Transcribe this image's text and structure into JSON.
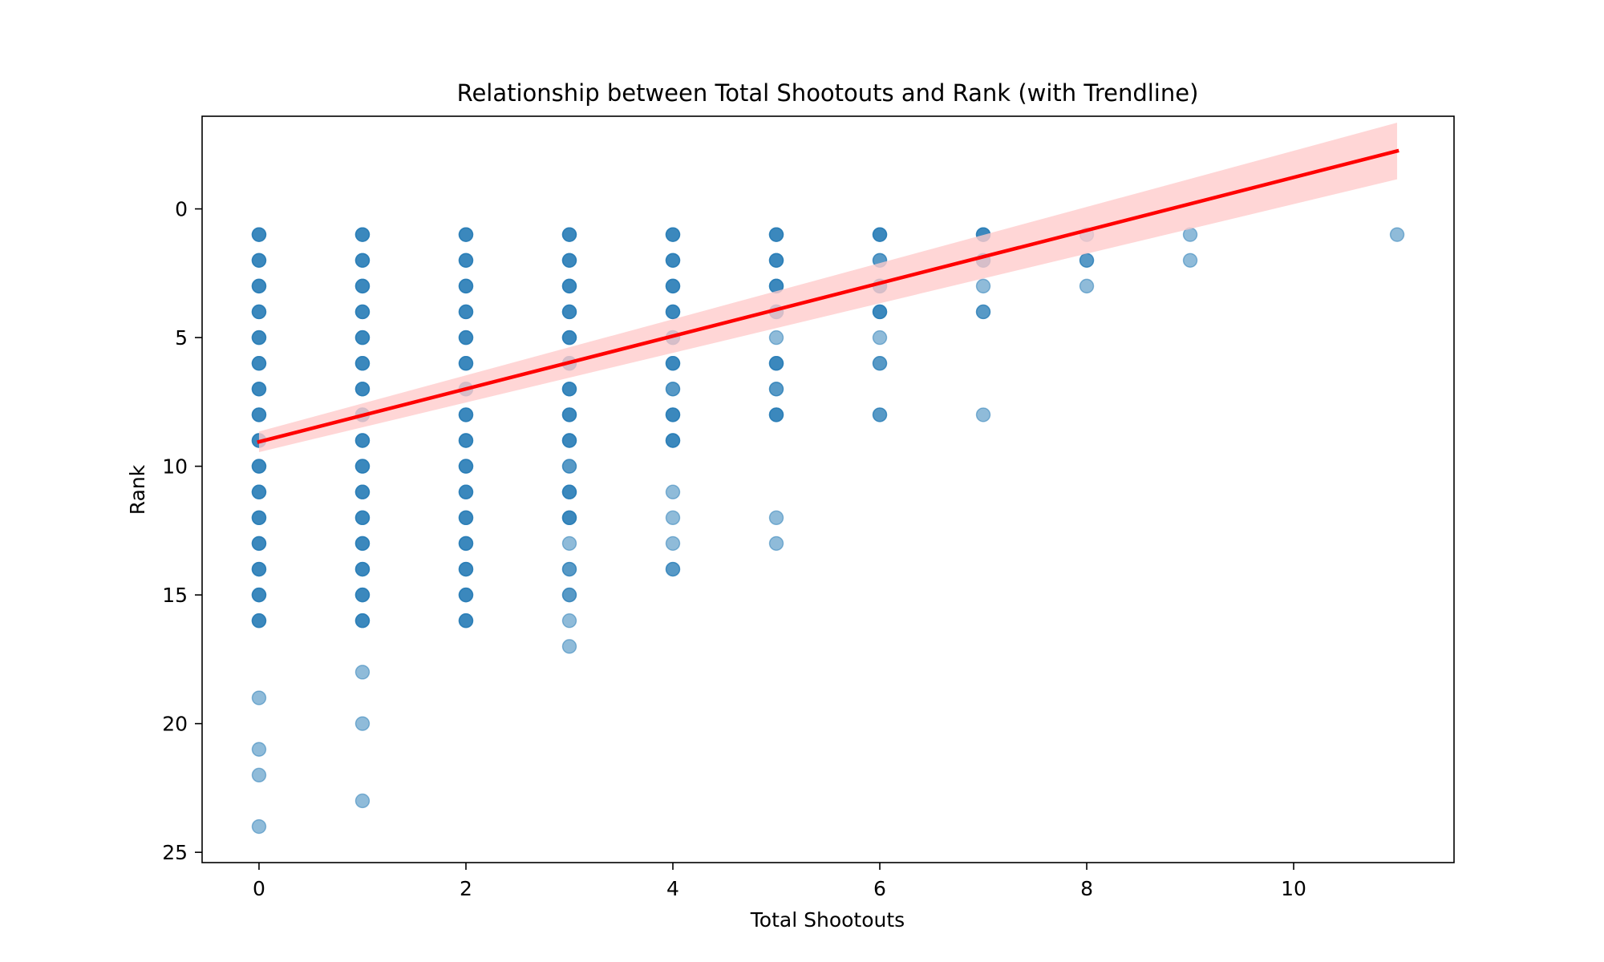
{
  "chart_data": {
    "type": "scatter",
    "title": "Relationship between Total Shootouts and Rank (with Trendline)",
    "xlabel": "Total Shootouts",
    "ylabel": "Rank",
    "xlim": [
      -0.55,
      11.55
    ],
    "ylim": [
      25.4,
      -3.6
    ],
    "y_inverted": true,
    "xticks": [
      0,
      2,
      4,
      6,
      8,
      10
    ],
    "yticks": [
      0,
      5,
      10,
      15,
      20,
      25
    ],
    "grid": false,
    "legend": "none",
    "colors": {
      "points": "#1f77b4",
      "trendline": "#ff0000",
      "confidence_band": "#ffcccc"
    },
    "series": [
      {
        "points": [
          {
            "x": 0,
            "y": 1,
            "count": 3
          },
          {
            "x": 0,
            "y": 2,
            "count": 3
          },
          {
            "x": 0,
            "y": 3,
            "count": 3
          },
          {
            "x": 0,
            "y": 4,
            "count": 3
          },
          {
            "x": 0,
            "y": 5,
            "count": 3
          },
          {
            "x": 0,
            "y": 6,
            "count": 3
          },
          {
            "x": 0,
            "y": 7,
            "count": 3
          },
          {
            "x": 0,
            "y": 8,
            "count": 3
          },
          {
            "x": 0,
            "y": 9,
            "count": 3
          },
          {
            "x": 0,
            "y": 10,
            "count": 3
          },
          {
            "x": 0,
            "y": 11,
            "count": 3
          },
          {
            "x": 0,
            "y": 12,
            "count": 3
          },
          {
            "x": 0,
            "y": 13,
            "count": 3
          },
          {
            "x": 0,
            "y": 14,
            "count": 3
          },
          {
            "x": 0,
            "y": 15,
            "count": 3
          },
          {
            "x": 0,
            "y": 16,
            "count": 3
          },
          {
            "x": 0,
            "y": 19,
            "count": 1
          },
          {
            "x": 0,
            "y": 21,
            "count": 1
          },
          {
            "x": 0,
            "y": 22,
            "count": 1
          },
          {
            "x": 0,
            "y": 24,
            "count": 1
          },
          {
            "x": 1,
            "y": 1,
            "count": 3
          },
          {
            "x": 1,
            "y": 2,
            "count": 3
          },
          {
            "x": 1,
            "y": 3,
            "count": 3
          },
          {
            "x": 1,
            "y": 4,
            "count": 3
          },
          {
            "x": 1,
            "y": 5,
            "count": 3
          },
          {
            "x": 1,
            "y": 6,
            "count": 3
          },
          {
            "x": 1,
            "y": 7,
            "count": 3
          },
          {
            "x": 1,
            "y": 8,
            "count": 3
          },
          {
            "x": 1,
            "y": 9,
            "count": 3
          },
          {
            "x": 1,
            "y": 10,
            "count": 3
          },
          {
            "x": 1,
            "y": 11,
            "count": 3
          },
          {
            "x": 1,
            "y": 12,
            "count": 3
          },
          {
            "x": 1,
            "y": 13,
            "count": 3
          },
          {
            "x": 1,
            "y": 14,
            "count": 3
          },
          {
            "x": 1,
            "y": 15,
            "count": 3
          },
          {
            "x": 1,
            "y": 16,
            "count": 3
          },
          {
            "x": 1,
            "y": 18,
            "count": 1
          },
          {
            "x": 1,
            "y": 20,
            "count": 1
          },
          {
            "x": 1,
            "y": 23,
            "count": 1
          },
          {
            "x": 2,
            "y": 1,
            "count": 3
          },
          {
            "x": 2,
            "y": 2,
            "count": 3
          },
          {
            "x": 2,
            "y": 3,
            "count": 3
          },
          {
            "x": 2,
            "y": 4,
            "count": 3
          },
          {
            "x": 2,
            "y": 5,
            "count": 3
          },
          {
            "x": 2,
            "y": 6,
            "count": 3
          },
          {
            "x": 2,
            "y": 7,
            "count": 3
          },
          {
            "x": 2,
            "y": 8,
            "count": 3
          },
          {
            "x": 2,
            "y": 9,
            "count": 3
          },
          {
            "x": 2,
            "y": 10,
            "count": 3
          },
          {
            "x": 2,
            "y": 11,
            "count": 3
          },
          {
            "x": 2,
            "y": 12,
            "count": 3
          },
          {
            "x": 2,
            "y": 13,
            "count": 3
          },
          {
            "x": 2,
            "y": 14,
            "count": 3
          },
          {
            "x": 2,
            "y": 15,
            "count": 3
          },
          {
            "x": 2,
            "y": 16,
            "count": 3
          },
          {
            "x": 3,
            "y": 1,
            "count": 3
          },
          {
            "x": 3,
            "y": 2,
            "count": 3
          },
          {
            "x": 3,
            "y": 3,
            "count": 3
          },
          {
            "x": 3,
            "y": 4,
            "count": 3
          },
          {
            "x": 3,
            "y": 5,
            "count": 3
          },
          {
            "x": 3,
            "y": 6,
            "count": 3
          },
          {
            "x": 3,
            "y": 7,
            "count": 3
          },
          {
            "x": 3,
            "y": 8,
            "count": 3
          },
          {
            "x": 3,
            "y": 9,
            "count": 3
          },
          {
            "x": 3,
            "y": 10,
            "count": 2
          },
          {
            "x": 3,
            "y": 11,
            "count": 3
          },
          {
            "x": 3,
            "y": 12,
            "count": 3
          },
          {
            "x": 3,
            "y": 13,
            "count": 1
          },
          {
            "x": 3,
            "y": 14,
            "count": 2
          },
          {
            "x": 3,
            "y": 15,
            "count": 2
          },
          {
            "x": 3,
            "y": 16,
            "count": 1
          },
          {
            "x": 3,
            "y": 17,
            "count": 1
          },
          {
            "x": 4,
            "y": 1,
            "count": 3
          },
          {
            "x": 4,
            "y": 2,
            "count": 3
          },
          {
            "x": 4,
            "y": 3,
            "count": 3
          },
          {
            "x": 4,
            "y": 4,
            "count": 3
          },
          {
            "x": 4,
            "y": 5,
            "count": 3
          },
          {
            "x": 4,
            "y": 6,
            "count": 3
          },
          {
            "x": 4,
            "y": 7,
            "count": 2
          },
          {
            "x": 4,
            "y": 8,
            "count": 3
          },
          {
            "x": 4,
            "y": 9,
            "count": 3
          },
          {
            "x": 4,
            "y": 11,
            "count": 1
          },
          {
            "x": 4,
            "y": 12,
            "count": 1
          },
          {
            "x": 4,
            "y": 13,
            "count": 1
          },
          {
            "x": 4,
            "y": 14,
            "count": 2
          },
          {
            "x": 5,
            "y": 1,
            "count": 3
          },
          {
            "x": 5,
            "y": 2,
            "count": 3
          },
          {
            "x": 5,
            "y": 3,
            "count": 3
          },
          {
            "x": 5,
            "y": 4,
            "count": 3
          },
          {
            "x": 5,
            "y": 5,
            "count": 1
          },
          {
            "x": 5,
            "y": 6,
            "count": 3
          },
          {
            "x": 5,
            "y": 7,
            "count": 2
          },
          {
            "x": 5,
            "y": 8,
            "count": 3
          },
          {
            "x": 5,
            "y": 12,
            "count": 1
          },
          {
            "x": 5,
            "y": 13,
            "count": 1
          },
          {
            "x": 6,
            "y": 1,
            "count": 3
          },
          {
            "x": 6,
            "y": 2,
            "count": 2
          },
          {
            "x": 6,
            "y": 3,
            "count": 3
          },
          {
            "x": 6,
            "y": 4,
            "count": 3
          },
          {
            "x": 6,
            "y": 5,
            "count": 1
          },
          {
            "x": 6,
            "y": 6,
            "count": 2
          },
          {
            "x": 6,
            "y": 8,
            "count": 2
          },
          {
            "x": 7,
            "y": 1,
            "count": 3
          },
          {
            "x": 7,
            "y": 2,
            "count": 3
          },
          {
            "x": 7,
            "y": 3,
            "count": 1
          },
          {
            "x": 7,
            "y": 4,
            "count": 2
          },
          {
            "x": 7,
            "y": 8,
            "count": 1
          },
          {
            "x": 8,
            "y": 1,
            "count": 1
          },
          {
            "x": 8,
            "y": 2,
            "count": 2
          },
          {
            "x": 8,
            "y": 3,
            "count": 1
          },
          {
            "x": 9,
            "y": 1,
            "count": 1
          },
          {
            "x": 9,
            "y": 2,
            "count": 1
          },
          {
            "x": 11,
            "y": 1,
            "count": 1
          }
        ]
      }
    ],
    "trendline": {
      "x_start": 0,
      "y_start": 9.05,
      "x_end": 11,
      "y_end": -2.25,
      "ci_start": [
        8.65,
        9.45
      ],
      "ci_end": [
        -3.35,
        -1.15
      ]
    }
  }
}
